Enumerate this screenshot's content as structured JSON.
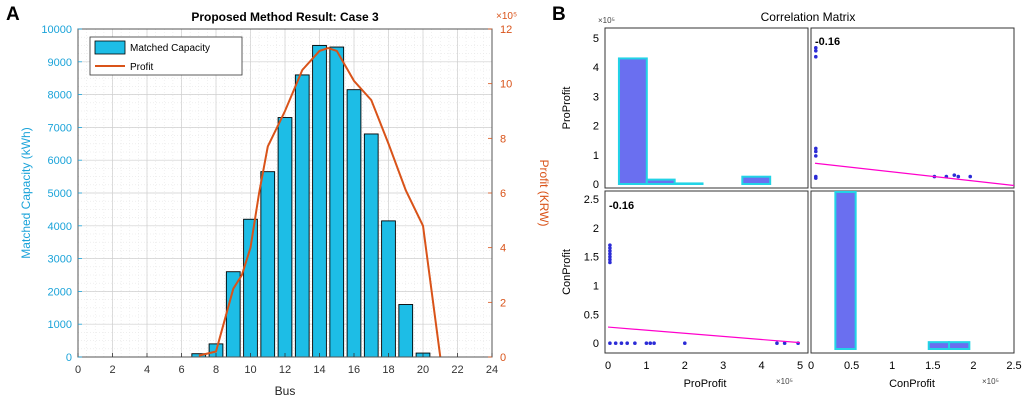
{
  "panels": {
    "a_label": "A",
    "b_label": "B"
  },
  "chart_data": [
    {
      "type": "bar",
      "title": "Proposed Method Result: Case 3",
      "xlabel": "Bus",
      "ylabel": "Matched Capacity (kWh)",
      "y2label": "Profit (KRW)",
      "y2_exponent": "×10⁵",
      "xlim": [
        0,
        24
      ],
      "ylim": [
        0,
        10000
      ],
      "y2lim": [
        0,
        12
      ],
      "xticks": [
        0,
        2,
        4,
        6,
        8,
        10,
        12,
        14,
        16,
        18,
        20,
        22,
        24
      ],
      "yticks": [
        0,
        1000,
        2000,
        3000,
        4000,
        5000,
        6000,
        7000,
        8000,
        9000,
        10000
      ],
      "y2ticks": [
        0,
        2,
        4,
        6,
        8,
        10,
        12
      ],
      "grid": true,
      "legend_position": "top-left",
      "legend": [
        "Matched Capacity",
        "Profit"
      ],
      "colors": {
        "bar": "#1dbde6",
        "profit": "#d95319",
        "left_axis": "#1aa3d9",
        "right_axis": "#d95319"
      },
      "bars": {
        "name": "Matched Capacity",
        "x": [
          7,
          8,
          9,
          10,
          11,
          12,
          13,
          14,
          15,
          16,
          17,
          18,
          19,
          20
        ],
        "values": [
          100,
          400,
          2600,
          4200,
          5650,
          7300,
          8600,
          9500,
          9450,
          8150,
          6800,
          4150,
          1600,
          120
        ]
      },
      "line": {
        "name": "Profit",
        "axis": "right",
        "x": [
          7,
          8,
          9,
          9.5,
          10,
          10.5,
          11,
          12,
          13,
          14,
          14.5,
          15,
          16,
          17,
          18,
          19,
          20,
          21
        ],
        "values": [
          0.05,
          0.2,
          2.5,
          3.0,
          4.0,
          6.0,
          7.7,
          9.0,
          10.5,
          11.2,
          11.3,
          11.2,
          10.1,
          9.4,
          7.8,
          6.1,
          4.8,
          0
        ]
      }
    },
    {
      "type": "scatter",
      "title": "Correlation Matrix",
      "variables": [
        "ProProfit",
        "ConProfit"
      ],
      "row_labels": [
        "ProProfit",
        "ConProfit"
      ],
      "x_exponent": "×10⁵",
      "y_exponent": "×10⁵",
      "colors": {
        "hist_fill": "#6a6ff0",
        "hist_edge": "#22d3e6",
        "points": "#2b2bd6",
        "fit_line": "#ff00cc"
      },
      "pro_hist": {
        "ylim": [
          0,
          5
        ],
        "yticks": [
          "0",
          "1",
          "2",
          "3",
          "4",
          "5"
        ],
        "xlim": [
          0,
          5
        ],
        "bins": [
          [
            0.3,
            1.0,
            4.3
          ],
          [
            1.0,
            1.7,
            0.15
          ],
          [
            1.7,
            2.4,
            0.02
          ],
          [
            3.4,
            4.1,
            0.25
          ]
        ]
      },
      "con_hist": {
        "xlim": [
          0,
          2.5
        ],
        "xticks": [
          "0",
          "0.5",
          "1",
          "1.5",
          "2",
          "2.5"
        ],
        "bins": [
          [
            0.3,
            0.55,
            3.0
          ],
          [
            1.45,
            1.7,
            0.13
          ],
          [
            1.7,
            1.95,
            0.13
          ]
        ],
        "ymax": 3
      },
      "top_right": {
        "r": "-0.16",
        "xlim": [
          0,
          2.5
        ],
        "ylim": [
          0,
          5
        ],
        "points": [
          [
            0.01,
            4.3
          ],
          [
            0.01,
            4.5
          ],
          [
            0.01,
            4.6
          ],
          [
            0.01,
            1.2
          ],
          [
            0.01,
            1.1
          ],
          [
            0.01,
            0.95
          ],
          [
            0.01,
            0.25
          ],
          [
            0.01,
            0.2
          ],
          [
            1.5,
            0.25
          ],
          [
            1.65,
            0.25
          ],
          [
            1.8,
            0.25
          ],
          [
            1.95,
            0.25
          ],
          [
            1.75,
            0.3
          ]
        ],
        "fit": [
          [
            0,
            0.7
          ],
          [
            2.5,
            -0.05
          ]
        ]
      },
      "bottom_left": {
        "r": "-0.16",
        "xlim": [
          0,
          5
        ],
        "ylim": [
          -0.1,
          2.5
        ],
        "yticks": [
          "0",
          "0.5",
          "1",
          "1.5",
          "2",
          "2.5"
        ],
        "xticks": [
          "0",
          "1",
          "2",
          "3",
          "4",
          "5"
        ],
        "points": [
          [
            0.05,
            1.4
          ],
          [
            0.05,
            1.45
          ],
          [
            0.05,
            1.5
          ],
          [
            0.05,
            1.55
          ],
          [
            0.05,
            1.6
          ],
          [
            0.05,
            1.65
          ],
          [
            0.05,
            1.7
          ],
          [
            0.05,
            0.0
          ],
          [
            0.2,
            0.0
          ],
          [
            0.35,
            0.0
          ],
          [
            0.5,
            0.0
          ],
          [
            0.7,
            0.0
          ],
          [
            1.0,
            0.0
          ],
          [
            1.1,
            0.0
          ],
          [
            1.2,
            0.0
          ],
          [
            2.0,
            0.0
          ],
          [
            4.4,
            0.0
          ],
          [
            4.6,
            0.0
          ],
          [
            4.95,
            0.0
          ]
        ],
        "fit": [
          [
            0,
            0.28
          ],
          [
            5,
            0.01
          ]
        ]
      }
    }
  ]
}
